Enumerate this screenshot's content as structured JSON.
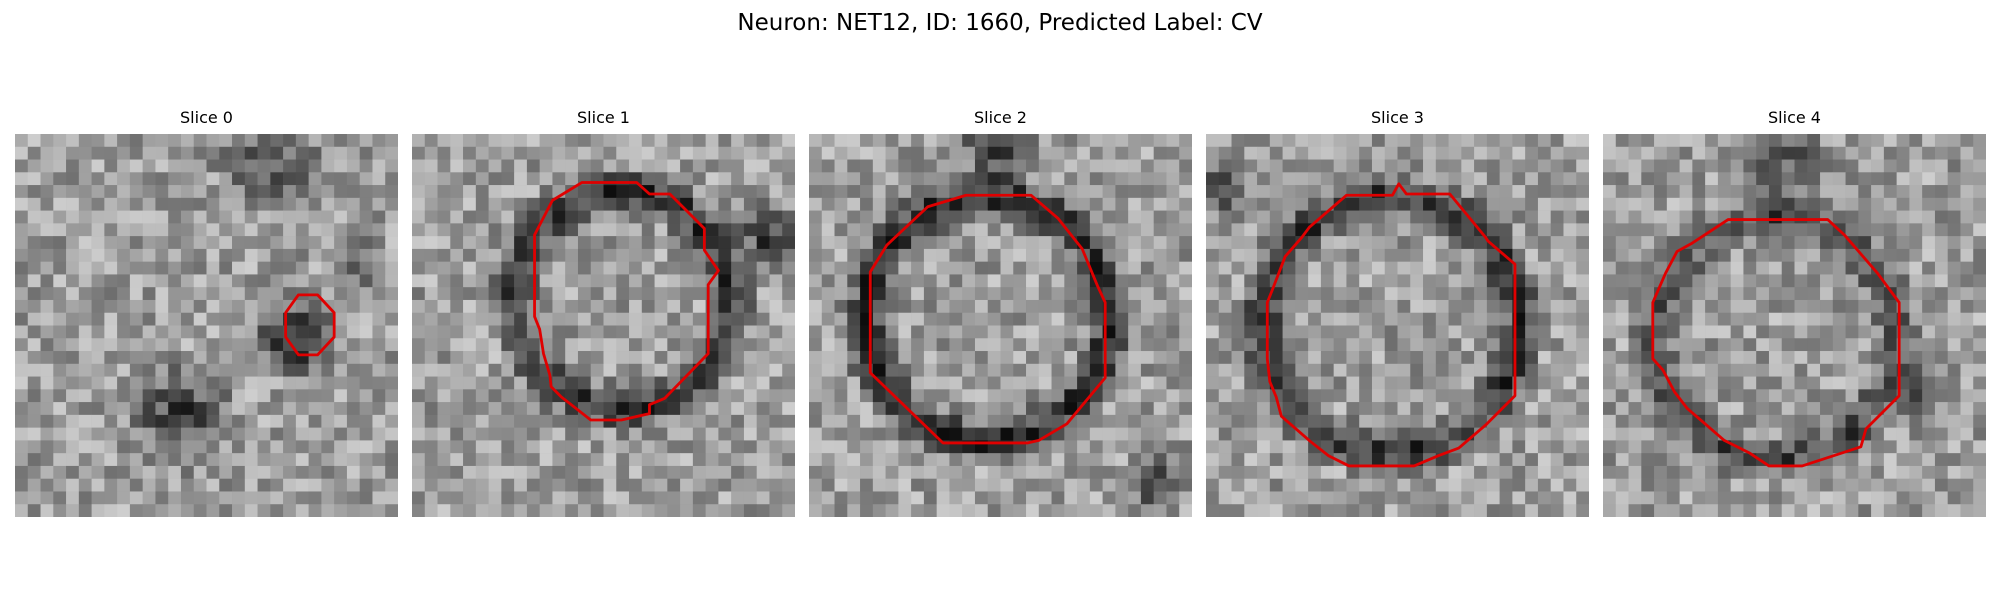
{
  "figure": {
    "title": "Neuron: NET12, ID: 1660, Predicted Label: CV"
  },
  "colors": {
    "background": "#ffffff",
    "contour": "#e00000"
  },
  "panels": [
    {
      "title": "Slice 0",
      "contour": "small octagon enclosing a dark spot, right-center of frame"
    },
    {
      "title": "Slice 1",
      "contour": "large irregular octagon, center"
    },
    {
      "title": "Slice 2",
      "contour": "large octagon, center"
    },
    {
      "title": "Slice 3",
      "contour": "large octagon, center"
    },
    {
      "title": "Slice 4",
      "contour": "large octagon, center"
    }
  ]
}
